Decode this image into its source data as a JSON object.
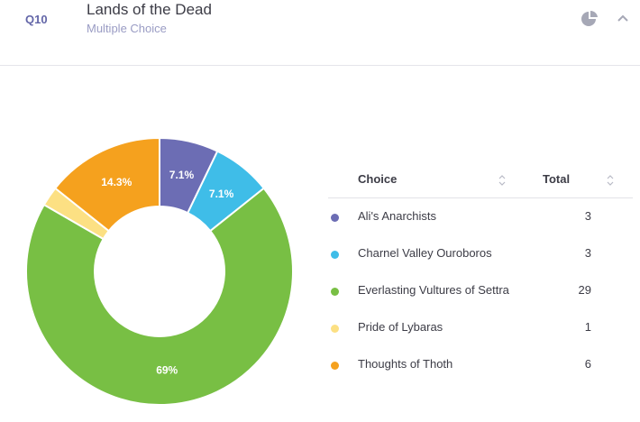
{
  "question": {
    "number": "Q10",
    "title": "Lands of the Dead",
    "type": "Multiple Choice"
  },
  "icons": {
    "chart_toggle": "pie-chart-icon",
    "collapse": "chevron-up-icon",
    "sort": "sort-icon"
  },
  "table": {
    "headers": {
      "choice": "Choice",
      "total": "Total"
    }
  },
  "chart_data": {
    "type": "pie",
    "labels": [
      "Ali's Anarchists",
      "Charnel Valley Ouroboros",
      "Everlasting Vultures of Settra",
      "Pride of Lybaras",
      "Thoughts of Thoth"
    ],
    "values": [
      3,
      3,
      29,
      1,
      6
    ],
    "data_labels": [
      "7.1%",
      "7.1%",
      "69%",
      "",
      "14.3%"
    ],
    "colors": [
      "#6c6db4",
      "#3fbde8",
      "#78bf44",
      "#fce083",
      "#f5a11e"
    ]
  }
}
